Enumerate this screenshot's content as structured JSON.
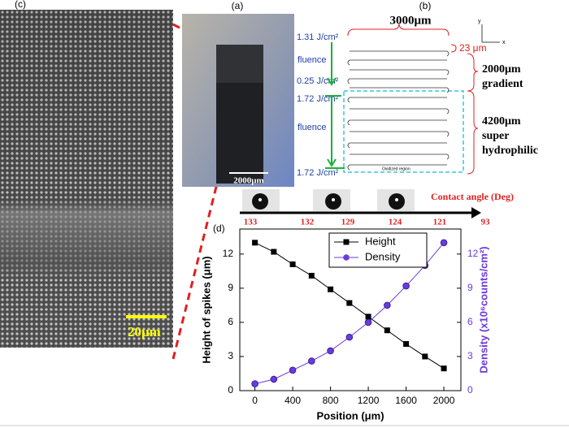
{
  "panels": {
    "c": {
      "label": "(c)",
      "scale_bar": "20μm"
    },
    "a": {
      "label": "(a)",
      "scale_bar": "2000μm"
    },
    "b": {
      "label": "(b)",
      "width": "3000μm",
      "spacing": "23 μm",
      "gradient": [
        "2000μm",
        "gradient"
      ],
      "hydrophilic": [
        "4200μm",
        "super",
        "hydrophilic"
      ],
      "fluence_top": "1.31 J/cm²",
      "fluence_label_1": "fluence",
      "fluence_mid": "0.25 J/cm²",
      "fluence_low_top": "1.72 J/cm²",
      "fluence_label_2": "fluence",
      "fluence_bottom": "1.72 J/cm²",
      "oxidized": "Oxidized region",
      "axis_y": "y",
      "axis_x": "x"
    },
    "contact_angle": {
      "title": "Contact angle (Deg)",
      "values": [
        133,
        132,
        129,
        124,
        121,
        93
      ]
    },
    "d": {
      "label": "(d)"
    }
  },
  "chart_data": {
    "type": "line",
    "x": [
      0,
      200,
      400,
      600,
      800,
      1000,
      1200,
      1400,
      1600,
      1800,
      2000
    ],
    "series": [
      {
        "name": "Height",
        "color": "#000000",
        "marker": "square",
        "axis": "y",
        "values": [
          13.0,
          12.2,
          11.1,
          10.1,
          8.9,
          7.7,
          6.5,
          5.3,
          4.1,
          3.0,
          1.95
        ]
      },
      {
        "name": "Density",
        "color": "#6a3bdc",
        "marker": "circle",
        "axis": "y2",
        "values": [
          0.6,
          1.0,
          1.8,
          2.6,
          3.5,
          4.7,
          6.0,
          7.5,
          9.2,
          11.0,
          13.0
        ]
      }
    ],
    "xlim": [
      -160,
      2180
    ],
    "xticks": [
      0,
      400,
      800,
      1200,
      1600,
      2000
    ],
    "ylim": [
      0,
      14.2
    ],
    "yticks": [
      0,
      3,
      6,
      9,
      12
    ],
    "y2lim": [
      0,
      14.2
    ],
    "y2ticks": [
      0,
      3,
      6,
      9,
      12
    ],
    "xlabel": "Position (μm)",
    "ylabel": "Height of spikes (μm)",
    "y2label": "Density (x10⁶counts/cm²)",
    "legend": "upper-center"
  }
}
